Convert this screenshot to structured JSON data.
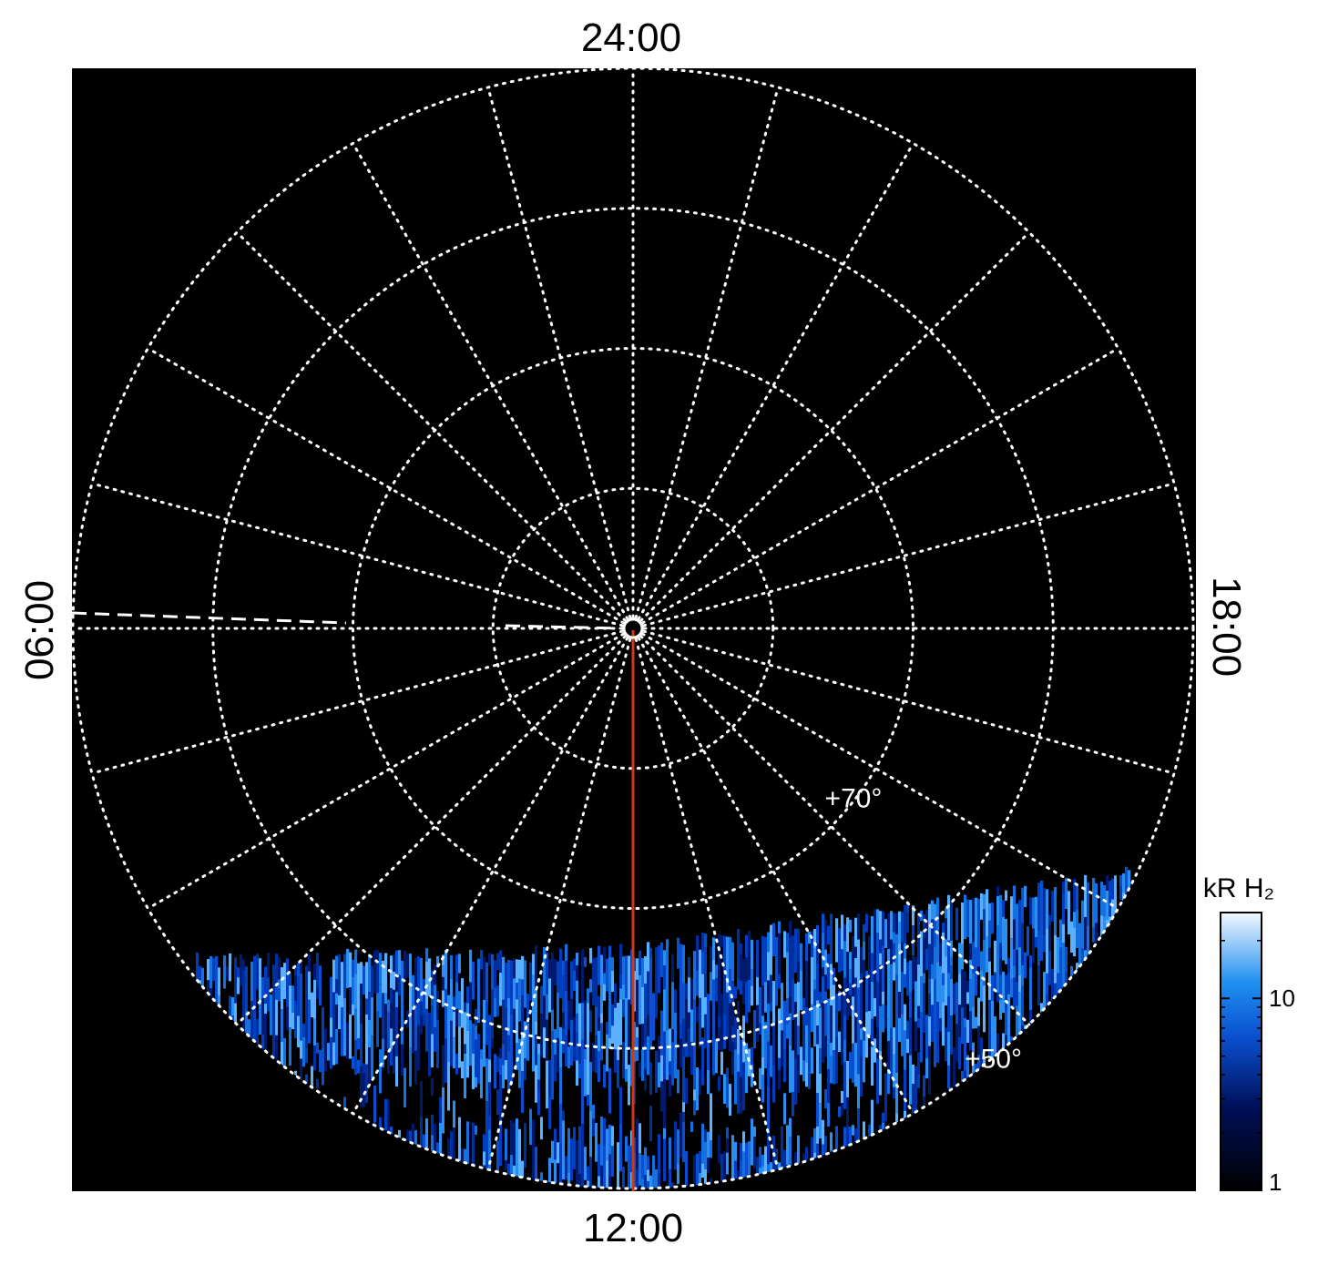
{
  "chart_data": {
    "type": "polar-map",
    "top_label": "24:00",
    "left_label": "06:00",
    "right_label": "18:00",
    "bottom_label": "12:00",
    "lat_rings": [
      80,
      70,
      60,
      50
    ],
    "rlim": [
      90,
      50
    ],
    "meridian_step_hours": 1,
    "ring_labels": [
      {
        "value": 70,
        "label": "+70°"
      },
      {
        "value": 50,
        "label": "+50°"
      }
    ],
    "colorbar": {
      "label": "kR H₂",
      "clim": [
        1,
        28
      ],
      "log": true,
      "ticks": [
        1,
        10
      ],
      "minor_ticks": [
        2,
        3,
        4,
        5,
        6,
        7,
        8,
        9,
        20
      ]
    }
  }
}
